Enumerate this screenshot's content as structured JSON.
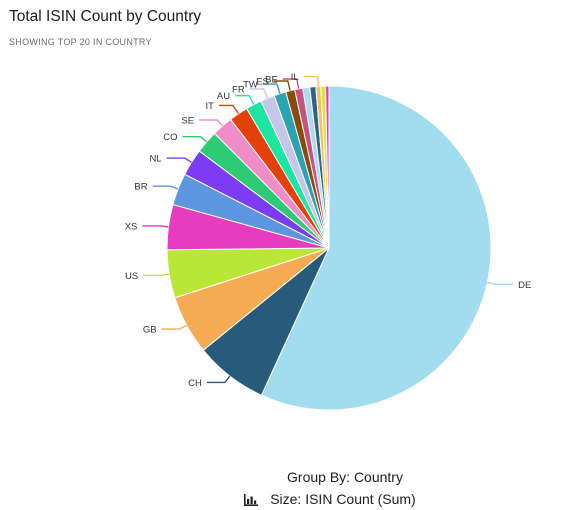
{
  "header": {
    "title": "Total ISIN Count by Country",
    "subtitle": "SHOWING TOP 20 IN COUNTRY"
  },
  "footer": {
    "group_by": "Group By: Country",
    "size_by": "Size: ISIN Count (Sum)",
    "size_icon": "bar-chart-icon"
  },
  "chart_data": {
    "type": "pie",
    "title": "Total ISIN Count by Country",
    "start_angle_deg": 0,
    "direction": "clockwise",
    "slices": [
      {
        "label": "DE",
        "value": 56.9,
        "color": "#a1dcef"
      },
      {
        "label": "CH",
        "value": 7.3,
        "color": "#275b79"
      },
      {
        "label": "GB",
        "value": 5.9,
        "color": "#f5ab53"
      },
      {
        "label": "US",
        "value": 4.8,
        "color": "#b9e637"
      },
      {
        "label": "XS",
        "value": 4.5,
        "color": "#e63cc0"
      },
      {
        "label": "BR",
        "value": 3.2,
        "color": "#5c96e0"
      },
      {
        "label": "NL",
        "value": 2.7,
        "color": "#7b3cf2"
      },
      {
        "label": "CO",
        "value": 2.3,
        "color": "#2ecb76"
      },
      {
        "label": "SE",
        "value": 2.1,
        "color": "#f08cc8"
      },
      {
        "label": "IT",
        "value": 1.9,
        "color": "#e34109"
      },
      {
        "label": "AU",
        "value": 1.6,
        "color": "#1de6a3"
      },
      {
        "label": "FR",
        "value": 1.4,
        "color": "#c6c6e6"
      },
      {
        "label": "TW",
        "value": 1.2,
        "color": "#2ba3b2"
      },
      {
        "label": "ES",
        "value": 0.9,
        "color": "#8a4b0f"
      },
      {
        "label": "BE",
        "value": 0.8,
        "color": "#c6537d"
      },
      {
        "label": "",
        "value": 0.7,
        "color": "#b0d9f0"
      },
      {
        "label": "",
        "value": 0.6,
        "color": "#2b6687"
      },
      {
        "label": "IL",
        "value": 0.5,
        "color": "#f7c065"
      },
      {
        "label": "",
        "value": 0.45,
        "color": "#d6e63f"
      },
      {
        "label": "",
        "value": 0.35,
        "color": "#e63ccf"
      }
    ]
  }
}
